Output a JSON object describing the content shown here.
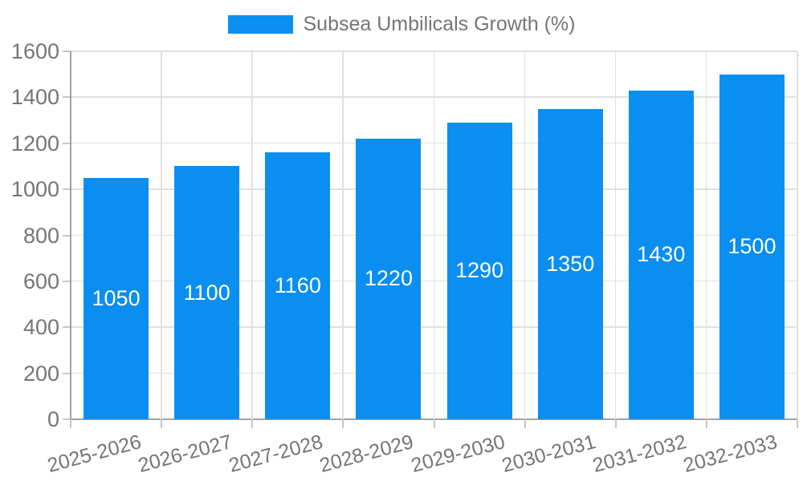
{
  "legend": {
    "position": "top"
  },
  "chart_data": {
    "type": "bar",
    "title": "",
    "series_name": "Subsea Umbilicals Growth (%)",
    "categories": [
      "2025-2026",
      "2026-2027",
      "2027-2028",
      "2028-2029",
      "2029-2030",
      "2030-2031",
      "2031-2032",
      "2032-2033"
    ],
    "values": [
      1050,
      1100,
      1160,
      1220,
      1290,
      1350,
      1430,
      1500
    ],
    "xlabel": "",
    "ylabel": "",
    "ylim": [
      0,
      1600
    ],
    "ytick_step": 200,
    "yticks": [
      0,
      200,
      400,
      600,
      800,
      1000,
      1200,
      1400,
      1600
    ],
    "grid": true,
    "legend_position": "top",
    "x_tick_rotation_deg": -15,
    "value_labels": "centered-inside-bars",
    "colors": {
      "bar": "#0a8ff0",
      "value_label": "#ffffff",
      "axis_text": "#757575",
      "gridline": "#e0e0e0",
      "axis_line": "#a3a3a3",
      "tick": "#c6c6c6",
      "background": "#ffffff"
    }
  }
}
